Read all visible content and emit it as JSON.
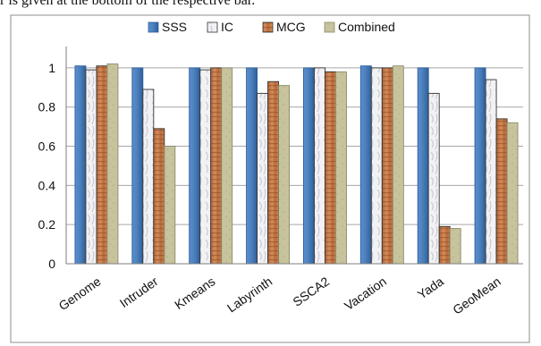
{
  "caption_fragment": "r is given at the bottom of the respective bar.",
  "chart_data": {
    "type": "bar",
    "title": "",
    "xlabel": "",
    "ylabel": "",
    "categories": [
      "Genome",
      "Intruder",
      "Kmeans",
      "Labyrinth",
      "SSCA2",
      "Vacation",
      "Yada",
      "GeoMean"
    ],
    "ylim": [
      0,
      1.1
    ],
    "yticks": [
      "0",
      "0.2",
      "0.4",
      "0.6",
      "0.8",
      "1"
    ],
    "grid": true,
    "legend_position": "top",
    "series": [
      {
        "name": "SSS",
        "color": "#4a7ebb",
        "values": [
          1.01,
          1.0,
          1.0,
          1.0,
          1.0,
          1.01,
          1.0,
          1.0
        ]
      },
      {
        "name": "IC",
        "color": "#eeeef2",
        "values": [
          0.99,
          0.89,
          0.99,
          0.87,
          1.0,
          1.0,
          0.87,
          0.94
        ]
      },
      {
        "name": "MCG",
        "color": "#c87a4a",
        "values": [
          1.01,
          0.69,
          1.0,
          0.93,
          0.98,
          1.0,
          0.19,
          0.74
        ]
      },
      {
        "name": "Combined",
        "color": "#c3bf98",
        "values": [
          1.02,
          0.6,
          1.0,
          0.91,
          0.98,
          1.01,
          0.18,
          0.72
        ]
      }
    ]
  }
}
